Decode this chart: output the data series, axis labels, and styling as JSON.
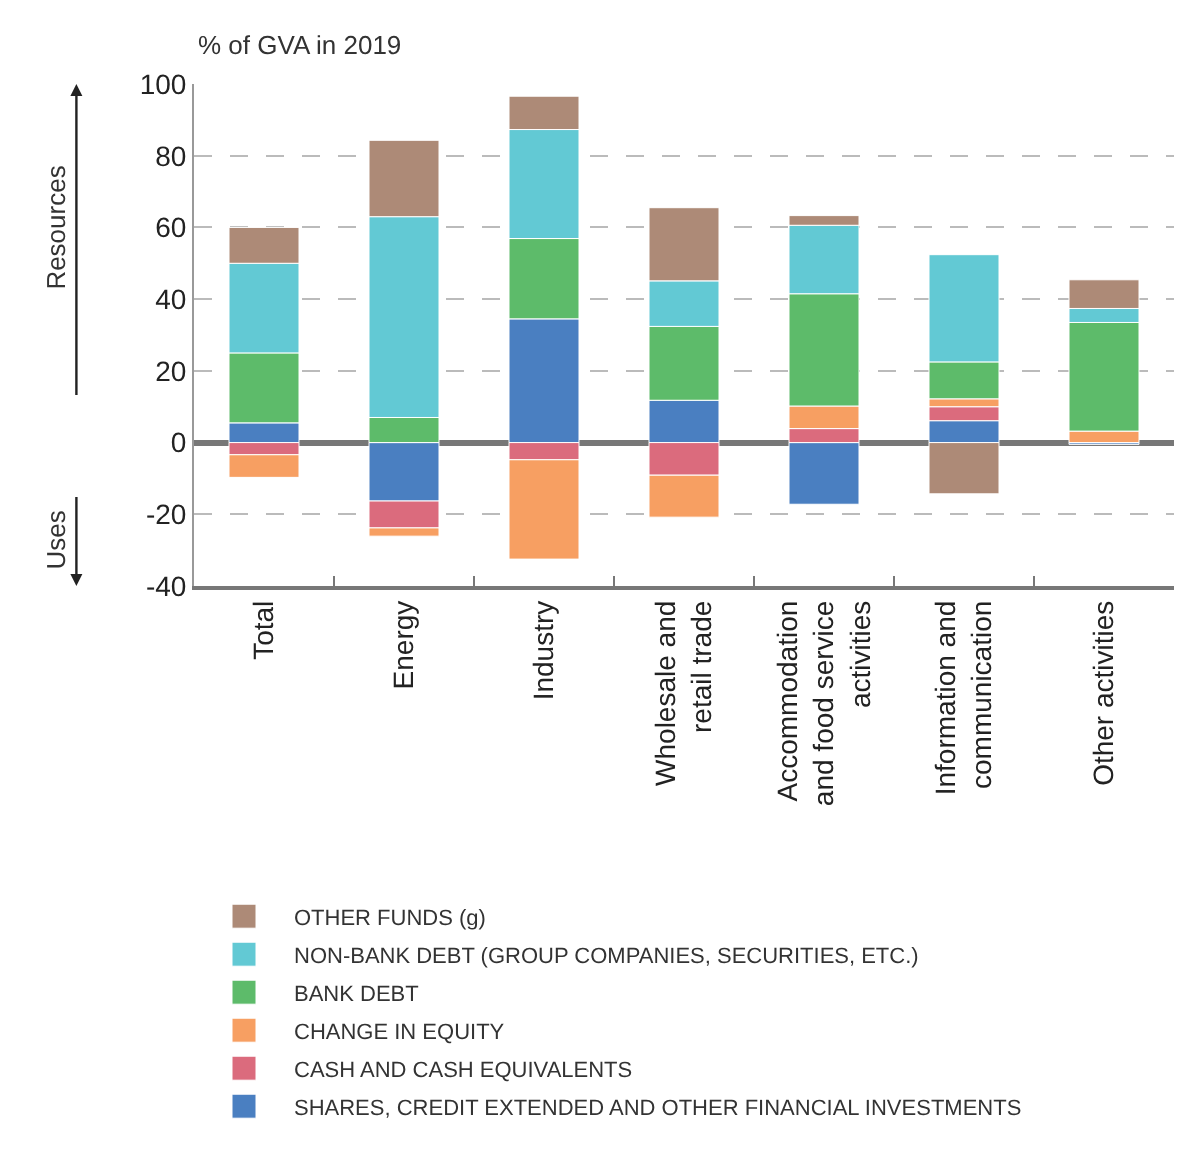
{
  "chart_data": {
    "type": "bar",
    "stacked": true,
    "ylabel": "% of GVA in 2019",
    "categories": [
      "Total",
      "Energy",
      "Industry",
      "Wholesale and retail trade",
      "Accommodation and food service activities",
      "Information and communication",
      "Other activities"
    ],
    "series": [
      {
        "name": "SHARES, CREDIT EXTENDED AND OTHER FINANCIAL INVESTMENTS",
        "color": "#4a7fc1",
        "values": [
          5.5,
          -16.3,
          34.5,
          11.8,
          -17.2,
          6.1,
          -0.5
        ]
      },
      {
        "name": "CASH AND CASH EQUIVALENTS",
        "color": "#db6b7d",
        "values": [
          -3.4,
          -7.5,
          -4.8,
          -9.1,
          3.9,
          3.9,
          0
        ]
      },
      {
        "name": "CHANGE IN EQUITY",
        "color": "#f79f62",
        "values": [
          -6.3,
          -2.3,
          -27.7,
          -11.7,
          6.3,
          2.2,
          3.2
        ]
      },
      {
        "name": "BANK DEBT",
        "color": "#5dbb6a",
        "values": [
          19.5,
          7,
          22.4,
          20.6,
          31.3,
          10.3,
          30.3
        ]
      },
      {
        "name": "NON-BANK DEBT (GROUP COMPANIES, SECURITIES, ETC.)",
        "color": "#62c9d4",
        "values": [
          25,
          56,
          30.4,
          12.7,
          19.1,
          29.9,
          3.9
        ]
      },
      {
        "name": "OTHER FUNDS (g)",
        "color": "#ad8a77",
        "values": [
          10,
          21.3,
          9.3,
          20.4,
          2.7,
          -14.3,
          8
        ]
      }
    ],
    "ylim": [
      -40,
      100
    ],
    "yticks": [
      -40,
      -20,
      0,
      20,
      40,
      60,
      80,
      100
    ],
    "grid": "y",
    "legend": "bottom",
    "annotations": [
      "Resources",
      "Uses"
    ]
  }
}
